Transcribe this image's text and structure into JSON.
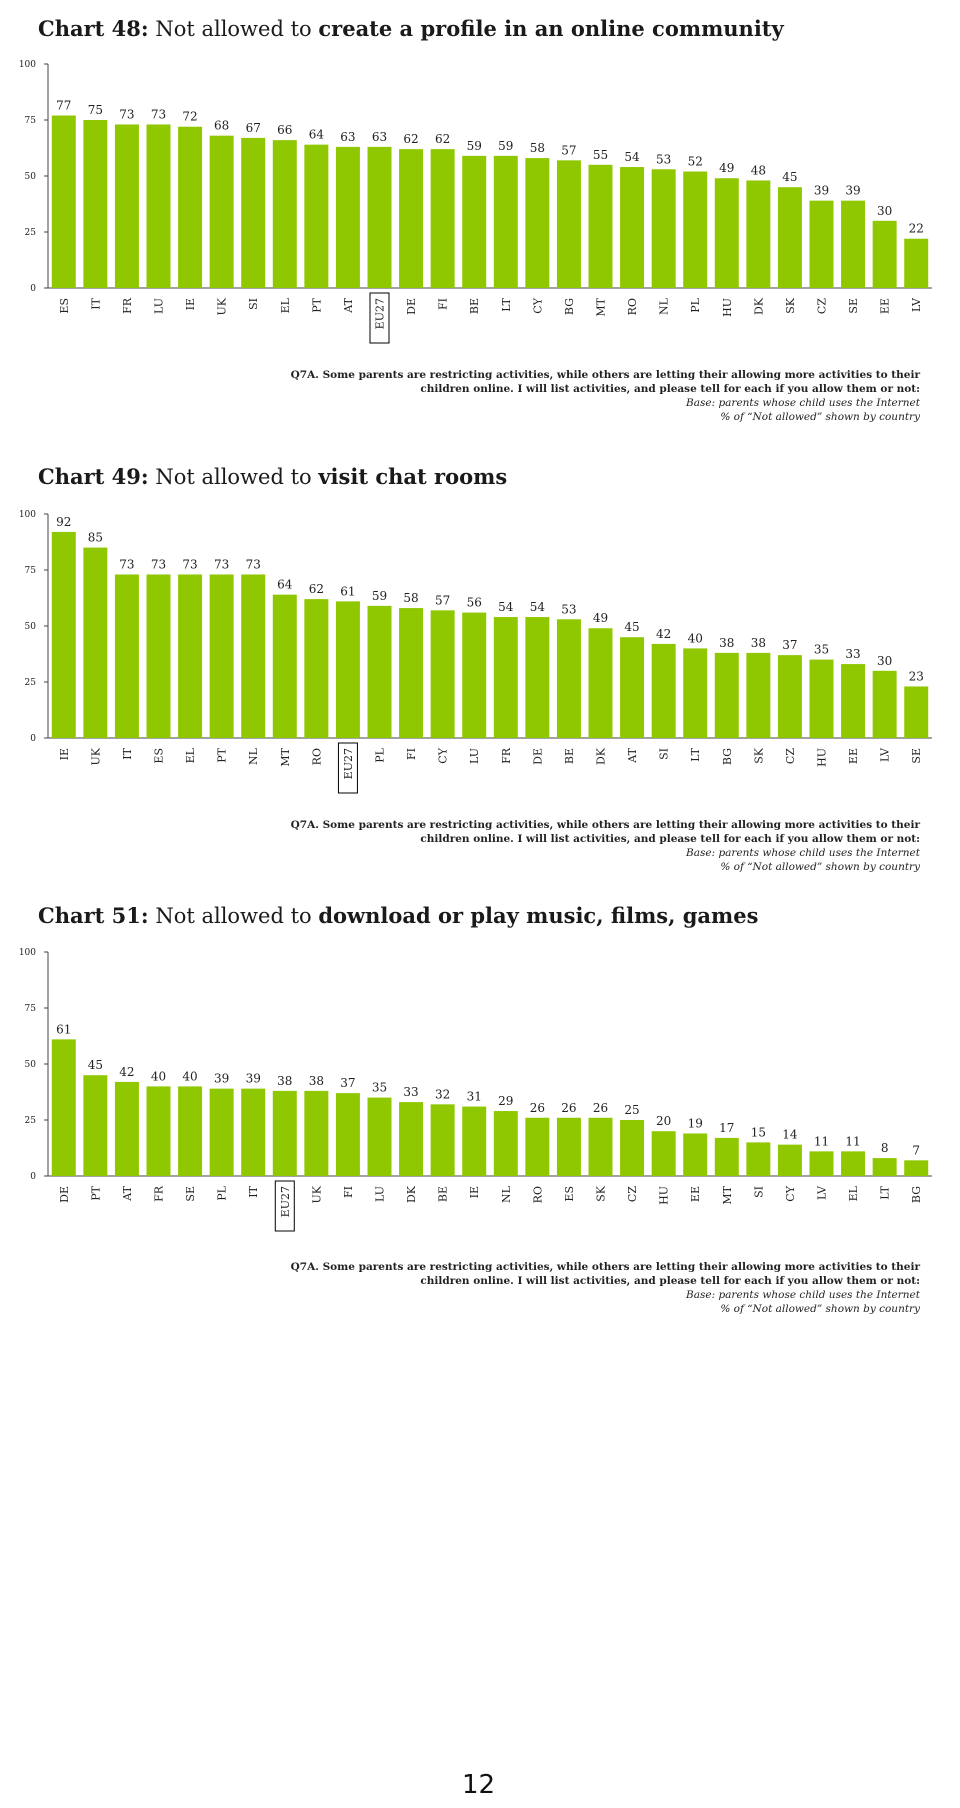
{
  "charts": [
    {
      "title_prefix": "Chart 48:",
      "title_plain": "Not allowed to",
      "title_bold": "create a profile in an online community",
      "note": {
        "question": "Q7A. Some parents are restricting activities, while others are letting their allowing more activities to their children online. I will list activities, and please tell for each if you allow them or not:",
        "base": "Base: parents whose child uses the Internet",
        "pct": "% of “Not allowed” shown by country"
      }
    },
    {
      "title_prefix": "Chart 49:",
      "title_plain": "Not allowed to",
      "title_bold": "visit chat rooms",
      "note": {
        "question": "Q7A. Some parents are restricting activities, while others are letting their allowing more activities to their children online. I will list activities, and please tell for each if you allow them or not:",
        "base": "Base: parents whose child uses the Internet",
        "pct": "% of “Not allowed” shown by country"
      }
    },
    {
      "title_prefix": "Chart 51:",
      "title_plain": "Not allowed to",
      "title_bold": "download or play music, films, games",
      "note": {
        "question": "Q7A. Some parents are restricting activities, while others are letting their allowing more activities to their children online. I will list activities, and please tell for each if you allow them or not:",
        "base": "Base: parents whose child uses the Internet",
        "pct": "% of “Not allowed” shown by country"
      }
    }
  ],
  "page_number": "12",
  "colors": {
    "bar": "#8fc800",
    "axis": "#444444",
    "highlight_box": "#000000"
  },
  "chart_data": [
    {
      "type": "bar",
      "title": "Chart 48: Not allowed to create a profile in an online community",
      "categories": [
        "ES",
        "IT",
        "FR",
        "LU",
        "IE",
        "UK",
        "SI",
        "EL",
        "PT",
        "AT",
        "EU27",
        "DE",
        "FI",
        "BE",
        "LT",
        "CY",
        "BG",
        "MT",
        "RO",
        "NL",
        "PL",
        "HU",
        "DK",
        "SK",
        "CZ",
        "SE",
        "EE",
        "LV"
      ],
      "values": [
        77,
        75,
        73,
        73,
        72,
        68,
        67,
        66,
        64,
        63,
        63,
        62,
        62,
        59,
        59,
        58,
        57,
        55,
        54,
        53,
        52,
        49,
        48,
        45,
        39,
        39,
        30,
        22
      ],
      "highlight": "EU27",
      "yticks": [
        0,
        25,
        50,
        75,
        100
      ],
      "ylim": [
        0,
        100
      ],
      "grid": false
    },
    {
      "type": "bar",
      "title": "Chart 49: Not allowed to visit chat rooms",
      "categories": [
        "IE",
        "UK",
        "IT",
        "ES",
        "EL",
        "PT",
        "NL",
        "MT",
        "RO",
        "EU27",
        "PL",
        "FI",
        "CY",
        "LU",
        "FR",
        "DE",
        "BE",
        "DK",
        "AT",
        "SI",
        "LT",
        "BG",
        "SK",
        "CZ",
        "HU",
        "EE",
        "LV",
        "SE"
      ],
      "values": [
        92,
        85,
        73,
        73,
        73,
        73,
        73,
        64,
        62,
        61,
        59,
        58,
        57,
        56,
        54,
        54,
        53,
        49,
        45,
        42,
        40,
        38,
        38,
        37,
        35,
        33,
        30,
        23
      ],
      "highlight": "EU27",
      "yticks": [
        0,
        25,
        50,
        75,
        100
      ],
      "ylim": [
        0,
        100
      ],
      "grid": false
    },
    {
      "type": "bar",
      "title": "Chart 51: Not allowed to download or play music, films, games",
      "categories": [
        "DE",
        "PT",
        "AT",
        "FR",
        "SE",
        "PL",
        "IT",
        "EU27",
        "UK",
        "FI",
        "LU",
        "DK",
        "BE",
        "IE",
        "NL",
        "RO",
        "ES",
        "SK",
        "CZ",
        "HU",
        "EE",
        "MT",
        "SI",
        "CY",
        "LV",
        "EL",
        "LT",
        "BG"
      ],
      "values": [
        61,
        45,
        42,
        40,
        40,
        39,
        39,
        38,
        38,
        37,
        35,
        33,
        32,
        31,
        29,
        26,
        26,
        26,
        25,
        20,
        19,
        17,
        15,
        14,
        11,
        11,
        8,
        7
      ],
      "highlight": "EU27",
      "yticks": [
        0,
        25,
        50,
        75,
        100
      ],
      "ylim": [
        0,
        100
      ],
      "grid": false
    }
  ]
}
